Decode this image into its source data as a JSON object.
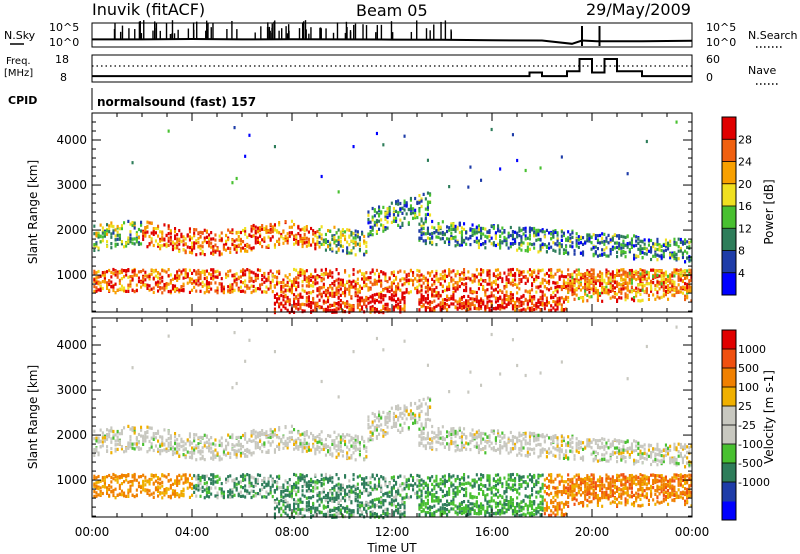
{
  "header": {
    "station": "Inuvik (fitACF)",
    "beam": "Beam 05",
    "date": "29/May/2009"
  },
  "noise_panel": {
    "left_label": "N.Sky",
    "left_ticks": [
      "10^5",
      "10^0"
    ],
    "right_ticks": [
      "10^5",
      "10^0"
    ],
    "right_label": "N.Search"
  },
  "freq_panel": {
    "left_label_line1": "Freq.",
    "left_label_line2": "[MHz]",
    "left_ticks": [
      "18",
      "8"
    ],
    "right_ticks": [
      "60",
      "0"
    ],
    "right_label": "Nave"
  },
  "cpid": {
    "label": "CPID",
    "value": "normalsound (fast) 157"
  },
  "x_axis": {
    "label": "Time UT",
    "ticks": [
      "00:00",
      "04:00",
      "08:00",
      "12:00",
      "16:00",
      "20:00",
      "00:00"
    ]
  },
  "colors": {
    "power_scale": [
      "#0000ff",
      "#1e3ca8",
      "#2e7d5a",
      "#48c030",
      "#f0e020",
      "#f8a000",
      "#f06010",
      "#e00000"
    ],
    "velocity_scale": [
      "#e00000",
      "#f05010",
      "#f08000",
      "#f0b000",
      "#c8c8c0",
      "#c8c8c0",
      "#48c030",
      "#2e7d5a",
      "#1e3ca8",
      "#0000ff"
    ]
  },
  "chart_data": [
    {
      "type": "line",
      "panel": "noise",
      "x_range_hours": [
        0,
        24
      ],
      "series": [
        {
          "name": "N.Sky",
          "style": "solid",
          "x": [
            0,
            2,
            4,
            6,
            8,
            10,
            12,
            14,
            16,
            18,
            19.2,
            19.6,
            20.2,
            22,
            24
          ],
          "y": [
            0.3,
            0.3,
            0.32,
            0.3,
            0.31,
            0.3,
            0.29,
            0.28,
            0.26,
            0.25,
            0.1,
            0.25,
            0.22,
            0.22,
            0.24
          ]
        },
        {
          "name": "N.Search",
          "style": "dotted",
          "x": [],
          "y": []
        }
      ]
    },
    {
      "type": "line",
      "panel": "frequency",
      "x_range_hours": [
        0,
        24
      ],
      "series": [
        {
          "name": "Freq.",
          "style": "solid",
          "x": [
            0,
            12,
            12.2,
            14,
            16,
            17.5,
            18,
            19,
            19.5,
            20,
            20.5,
            21,
            22,
            24
          ],
          "y": [
            10.2,
            10.2,
            10.2,
            10.2,
            10.2,
            11.5,
            10.2,
            12,
            16.5,
            11.5,
            16.5,
            12,
            10.2,
            10.2
          ]
        },
        {
          "name": "Nave",
          "style": "dotted",
          "x": [
            0,
            24
          ],
          "y": [
            44,
            44
          ]
        }
      ]
    },
    {
      "type": "heatmap",
      "panel": "power",
      "title": "",
      "xlabel": "Time UT",
      "ylabel": "Slant Range [km]",
      "xlim_hours": [
        0,
        24
      ],
      "ylim": [
        180,
        4600
      ],
      "y_ticks": [
        1000,
        2000,
        3000,
        4000
      ],
      "colorbar": {
        "label": "Power [dB]",
        "ticks": [
          4,
          8,
          12,
          16,
          20,
          24,
          28
        ]
      }
    },
    {
      "type": "heatmap",
      "panel": "velocity",
      "title": "",
      "xlabel": "Time UT",
      "ylabel": "Slant Range [km]",
      "xlim_hours": [
        0,
        24
      ],
      "ylim": [
        180,
        4600
      ],
      "y_ticks": [
        1000,
        2000,
        3000,
        4000
      ],
      "colorbar": {
        "label": "Velocity [m s-1]",
        "ticks": [
          1000,
          500,
          100,
          25,
          -25,
          -100,
          -500,
          -1000
        ]
      }
    }
  ]
}
